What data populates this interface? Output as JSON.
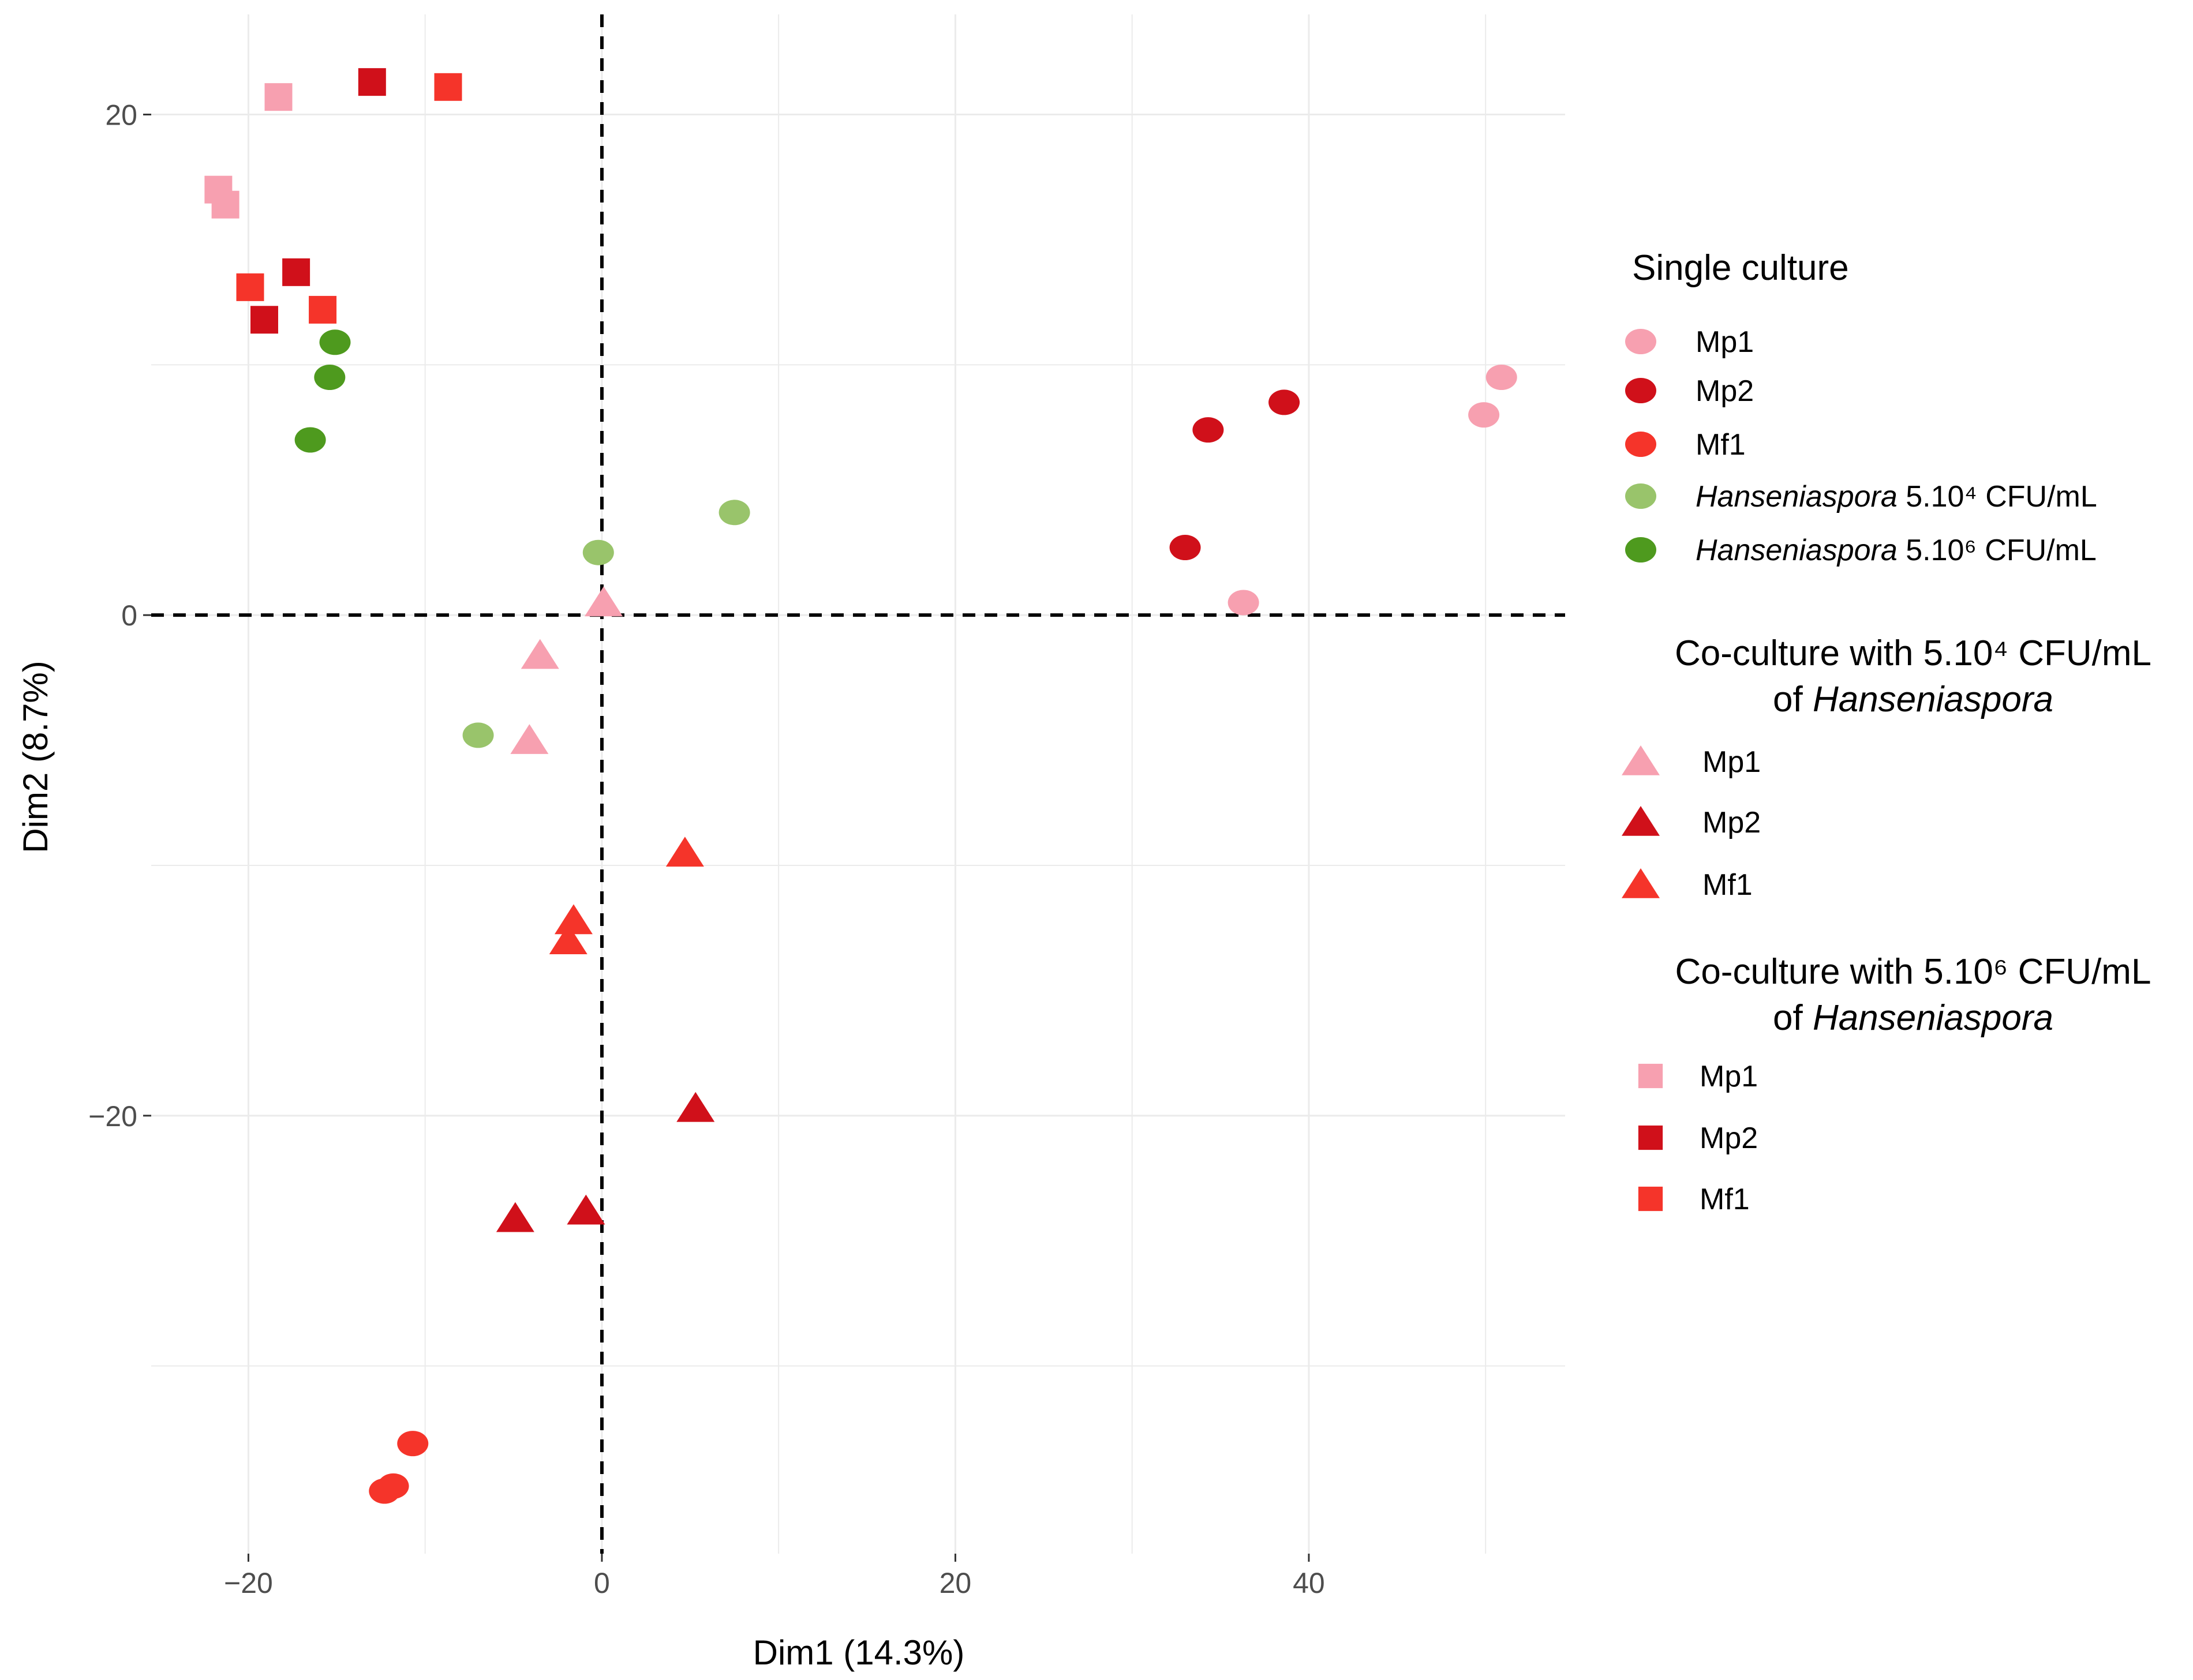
{
  "chart_data": {
    "type": "scatter",
    "xlabel": "Dim1 (14.3%)",
    "ylabel": "Dim2 (8.7%)",
    "xlim": [
      -25.5,
      54.5
    ],
    "ylim": [
      -37.5,
      24
    ],
    "x_ticks": [
      -20,
      0,
      20,
      40
    ],
    "y_ticks": [
      -20,
      0,
      20
    ],
    "grid": true,
    "reference_lines": {
      "x": 0,
      "y": 0,
      "style": "dashed"
    },
    "legend_position": "right",
    "colors": {
      "Mp1": "#f7a0b0",
      "Mp2": "#d0101a",
      "Mf1": "#f5342a",
      "Hlow": "#99c46b",
      "Hhigh": "#4e9a1e"
    },
    "legend_groups": [
      {
        "title": [
          "Single culture"
        ],
        "shape": "circle",
        "entries": [
          {
            "label": "Mp1",
            "color_key": "Mp1"
          },
          {
            "label": "Mp2",
            "color_key": "Mp2"
          },
          {
            "label": "Mf1",
            "color_key": "Mf1"
          },
          {
            "label_italic": "Hanseniaspora",
            "label": "5.10⁴ CFU/mL",
            "color_key": "Hlow"
          },
          {
            "label_italic": "Hanseniaspora",
            "label": "5.10⁶ CFU/mL",
            "color_key": "Hhigh"
          }
        ]
      },
      {
        "title": [
          "Co-culture with 5.10⁴ CFU/mL",
          "of Hanseniaspora"
        ],
        "shape": "triangle",
        "entries": [
          {
            "label": "Mp1",
            "color_key": "Mp1"
          },
          {
            "label": "Mp2",
            "color_key": "Mp2"
          },
          {
            "label": "Mf1",
            "color_key": "Mf1"
          }
        ]
      },
      {
        "title": [
          "Co-culture with 5.10⁶ CFU/mL",
          "of Hanseniaspora"
        ],
        "shape": "square",
        "entries": [
          {
            "label": "Mp1",
            "color_key": "Mp1"
          },
          {
            "label": "Mp2",
            "color_key": "Mp2"
          },
          {
            "label": "Mf1",
            "color_key": "Mf1"
          }
        ]
      }
    ],
    "series": [
      {
        "shape": "circle",
        "color_key": "Mp1",
        "points": [
          [
            50.9,
            9.5
          ],
          [
            49.9,
            8.0
          ],
          [
            36.3,
            0.5
          ]
        ]
      },
      {
        "shape": "circle",
        "color_key": "Mp2",
        "points": [
          [
            38.6,
            8.5
          ],
          [
            34.3,
            7.4
          ],
          [
            33.0,
            2.7
          ]
        ]
      },
      {
        "shape": "circle",
        "color_key": "Mf1",
        "points": [
          [
            -10.7,
            -33.1
          ],
          [
            -11.8,
            -34.8
          ],
          [
            -12.3,
            -35.0
          ]
        ]
      },
      {
        "shape": "circle",
        "color_key": "Hlow",
        "points": [
          [
            7.5,
            4.1
          ],
          [
            -0.2,
            2.5
          ],
          [
            -7.0,
            -4.8
          ]
        ]
      },
      {
        "shape": "circle",
        "color_key": "Hhigh",
        "points": [
          [
            -15.1,
            10.9
          ],
          [
            -15.4,
            9.5
          ],
          [
            -16.5,
            7.0
          ]
        ]
      },
      {
        "shape": "triangle",
        "color_key": "Mp1",
        "points": [
          [
            0.1,
            0.5
          ],
          [
            -3.5,
            -1.6
          ],
          [
            -4.1,
            -5.0
          ]
        ]
      },
      {
        "shape": "triangle",
        "color_key": "Mp2",
        "points": [
          [
            5.3,
            -19.7
          ],
          [
            -0.9,
            -23.8
          ],
          [
            -4.9,
            -24.1
          ]
        ]
      },
      {
        "shape": "triangle",
        "color_key": "Mf1",
        "points": [
          [
            4.7,
            -9.5
          ],
          [
            -1.6,
            -12.2
          ],
          [
            -1.9,
            -13.0
          ]
        ]
      },
      {
        "shape": "square",
        "color_key": "Mp1",
        "points": [
          [
            -18.3,
            20.7
          ],
          [
            -21.7,
            17.0
          ],
          [
            -21.3,
            16.4
          ]
        ]
      },
      {
        "shape": "square",
        "color_key": "Mp2",
        "points": [
          [
            -13.0,
            21.3
          ],
          [
            -17.3,
            13.7
          ],
          [
            -19.1,
            11.8
          ]
        ]
      },
      {
        "shape": "square",
        "color_key": "Mf1",
        "points": [
          [
            -8.7,
            21.1
          ],
          [
            -19.9,
            13.1
          ],
          [
            -15.8,
            12.2
          ]
        ]
      }
    ]
  }
}
